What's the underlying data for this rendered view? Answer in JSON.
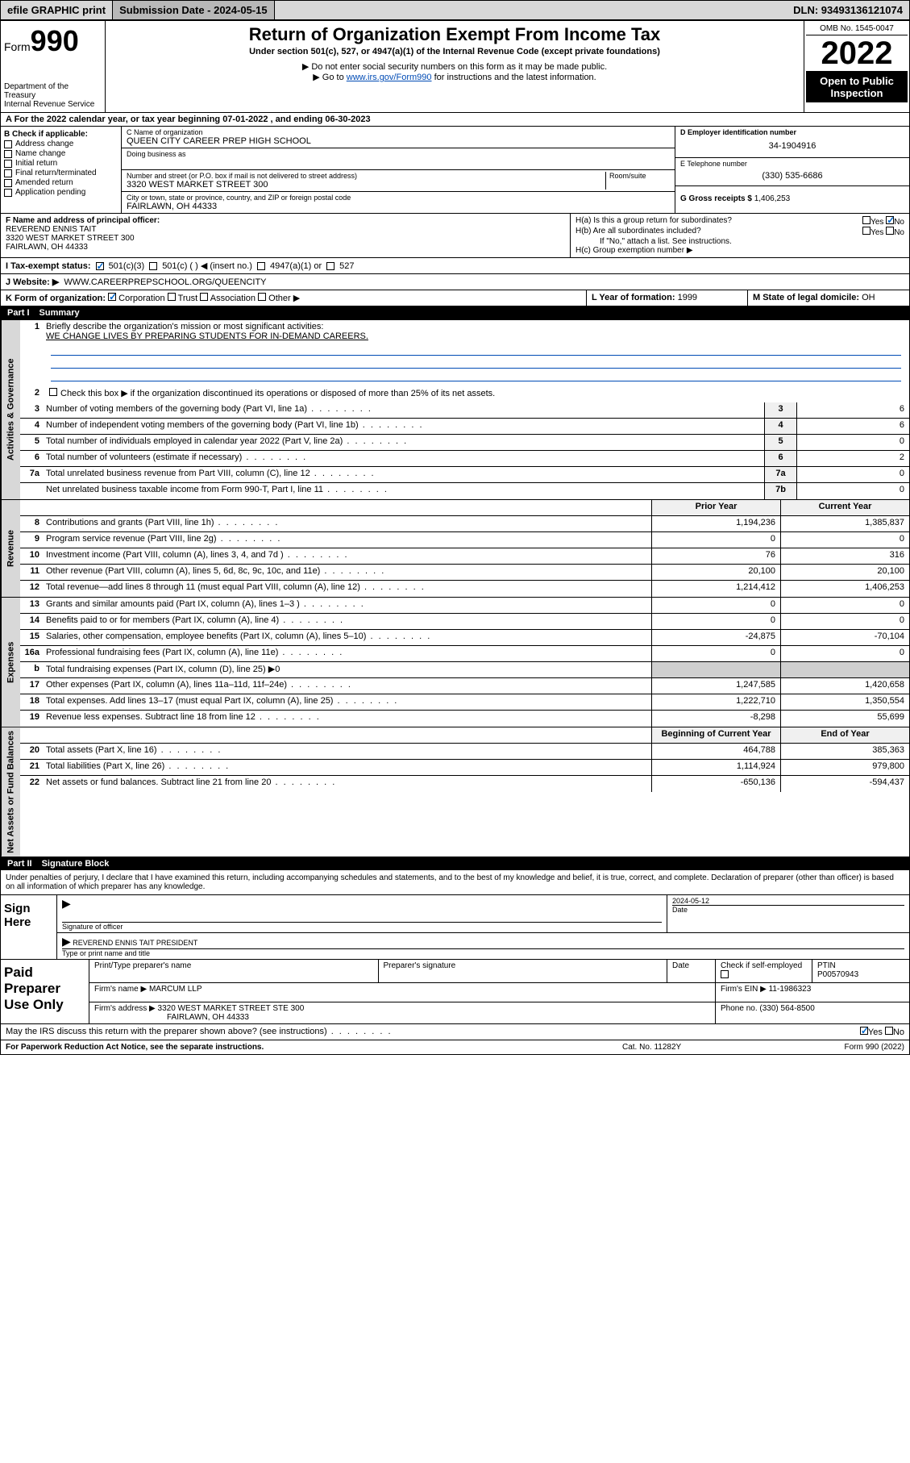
{
  "topbar": {
    "efile": "efile GRAPHIC print",
    "submission_label": "Submission Date - 2024-05-15",
    "dln": "DLN: 93493136121074"
  },
  "header": {
    "form_label": "Form",
    "form_number": "990",
    "dept": "Department of the Treasury",
    "irs": "Internal Revenue Service",
    "title": "Return of Organization Exempt From Income Tax",
    "subtitle": "Under section 501(c), 527, or 4947(a)(1) of the Internal Revenue Code (except private foundations)",
    "note1": "▶ Do not enter social security numbers on this form as it may be made public.",
    "note2_pre": "▶ Go to ",
    "note2_link": "www.irs.gov/Form990",
    "note2_post": " for instructions and the latest information.",
    "omb": "OMB No. 1545-0047",
    "year": "2022",
    "open": "Open to Public Inspection"
  },
  "section_a": "A For the 2022 calendar year, or tax year beginning 07-01-2022   , and ending 06-30-2023",
  "section_b": {
    "title": "B Check if applicable:",
    "items": [
      "Address change",
      "Name change",
      "Initial return",
      "Final return/terminated",
      "Amended return",
      "Application pending"
    ]
  },
  "section_c": {
    "name_label": "C Name of organization",
    "name": "QUEEN CITY CAREER PREP HIGH SCHOOL",
    "dba_label": "Doing business as",
    "addr_label": "Number and street (or P.O. box if mail is not delivered to street address)",
    "room_label": "Room/suite",
    "addr": "3320 WEST MARKET STREET 300",
    "city_label": "City or town, state or province, country, and ZIP or foreign postal code",
    "city": "FAIRLAWN, OH  44333"
  },
  "section_d": {
    "label": "D Employer identification number",
    "val": "34-1904916"
  },
  "section_e": {
    "label": "E Telephone number",
    "val": "(330) 535-6686"
  },
  "section_g": {
    "label": "G Gross receipts $",
    "val": "1,406,253"
  },
  "section_f": {
    "label": "F Name and address of principal officer:",
    "name": "REVEREND ENNIS TAIT",
    "addr1": "3320 WEST MARKET STREET 300",
    "addr2": "FAIRLAWN, OH  44333"
  },
  "section_h": {
    "ha": "H(a)  Is this a group return for subordinates?",
    "hb": "H(b)  Are all subordinates included?",
    "hb_note": "If \"No,\" attach a list. See instructions.",
    "hc": "H(c)  Group exemption number ▶"
  },
  "section_i": {
    "label": "I   Tax-exempt status:",
    "opts": [
      "501(c)(3)",
      "501(c) (  ) ◀ (insert no.)",
      "4947(a)(1) or",
      "527"
    ]
  },
  "section_j": {
    "label": "J   Website: ▶",
    "val": "WWW.CAREERPREPSCHOOL.ORG/QUEENCITY"
  },
  "section_k": {
    "label": "K Form of organization:",
    "opts": [
      "Corporation",
      "Trust",
      "Association",
      "Other ▶"
    ]
  },
  "section_l": {
    "label": "L Year of formation:",
    "val": "1999"
  },
  "section_m": {
    "label": "M State of legal domicile:",
    "val": "OH"
  },
  "part1": {
    "label": "Part I",
    "title": "Summary"
  },
  "gov": {
    "q1": "Briefly describe the organization's mission or most significant activities:",
    "mission": "WE CHANGE LIVES BY PREPARING STUDENTS FOR IN-DEMAND CAREERS.",
    "q2": "Check this box ▶        if the organization discontinued its operations or disposed of more than 25% of its net assets.",
    "lines": [
      {
        "n": "3",
        "d": "Number of voting members of the governing body (Part VI, line 1a)",
        "bn": "3",
        "v": "6"
      },
      {
        "n": "4",
        "d": "Number of independent voting members of the governing body (Part VI, line 1b)",
        "bn": "4",
        "v": "6"
      },
      {
        "n": "5",
        "d": "Total number of individuals employed in calendar year 2022 (Part V, line 2a)",
        "bn": "5",
        "v": "0"
      },
      {
        "n": "6",
        "d": "Total number of volunteers (estimate if necessary)",
        "bn": "6",
        "v": "2"
      },
      {
        "n": "7a",
        "d": "Total unrelated business revenue from Part VIII, column (C), line 12",
        "bn": "7a",
        "v": "0"
      },
      {
        "n": "",
        "d": "Net unrelated business taxable income from Form 990-T, Part I, line 11",
        "bn": "7b",
        "v": "0"
      }
    ]
  },
  "cols": {
    "prior": "Prior Year",
    "curr": "Current Year",
    "boy": "Beginning of Current Year",
    "eoy": "End of Year"
  },
  "revenue": [
    {
      "n": "8",
      "d": "Contributions and grants (Part VIII, line 1h)",
      "p": "1,194,236",
      "c": "1,385,837"
    },
    {
      "n": "9",
      "d": "Program service revenue (Part VIII, line 2g)",
      "p": "0",
      "c": "0"
    },
    {
      "n": "10",
      "d": "Investment income (Part VIII, column (A), lines 3, 4, and 7d )",
      "p": "76",
      "c": "316"
    },
    {
      "n": "11",
      "d": "Other revenue (Part VIII, column (A), lines 5, 6d, 8c, 9c, 10c, and 11e)",
      "p": "20,100",
      "c": "20,100"
    },
    {
      "n": "12",
      "d": "Total revenue—add lines 8 through 11 (must equal Part VIII, column (A), line 12)",
      "p": "1,214,412",
      "c": "1,406,253"
    }
  ],
  "expenses": [
    {
      "n": "13",
      "d": "Grants and similar amounts paid (Part IX, column (A), lines 1–3 )",
      "p": "0",
      "c": "0"
    },
    {
      "n": "14",
      "d": "Benefits paid to or for members (Part IX, column (A), line 4)",
      "p": "0",
      "c": "0"
    },
    {
      "n": "15",
      "d": "Salaries, other compensation, employee benefits (Part IX, column (A), lines 5–10)",
      "p": "-24,875",
      "c": "-70,104"
    },
    {
      "n": "16a",
      "d": "Professional fundraising fees (Part IX, column (A), line 11e)",
      "p": "0",
      "c": "0"
    },
    {
      "n": "b",
      "d": "Total fundraising expenses (Part IX, column (D), line 25) ▶0",
      "shade": true
    },
    {
      "n": "17",
      "d": "Other expenses (Part IX, column (A), lines 11a–11d, 11f–24e)",
      "p": "1,247,585",
      "c": "1,420,658"
    },
    {
      "n": "18",
      "d": "Total expenses. Add lines 13–17 (must equal Part IX, column (A), line 25)",
      "p": "1,222,710",
      "c": "1,350,554"
    },
    {
      "n": "19",
      "d": "Revenue less expenses. Subtract line 18 from line 12",
      "p": "-8,298",
      "c": "55,699"
    }
  ],
  "netassets": [
    {
      "n": "20",
      "d": "Total assets (Part X, line 16)",
      "p": "464,788",
      "c": "385,363"
    },
    {
      "n": "21",
      "d": "Total liabilities (Part X, line 26)",
      "p": "1,114,924",
      "c": "979,800"
    },
    {
      "n": "22",
      "d": "Net assets or fund balances. Subtract line 21 from line 20",
      "p": "-650,136",
      "c": "-594,437"
    }
  ],
  "part2": {
    "label": "Part II",
    "title": "Signature Block"
  },
  "sig": {
    "declaration": "Under penalties of perjury, I declare that I have examined this return, including accompanying schedules and statements, and to the best of my knowledge and belief, it is true, correct, and complete. Declaration of preparer (other than officer) is based on all information of which preparer has any knowledge.",
    "sign_here": "Sign Here",
    "sig_officer": "Signature of officer",
    "date": "Date",
    "date_val": "2024-05-12",
    "name_title": "REVEREND ENNIS TAIT PRESIDENT",
    "name_title_label": "Type or print name and title"
  },
  "paid": {
    "label": "Paid Preparer Use Only",
    "cols": [
      "Print/Type preparer's name",
      "Preparer's signature",
      "Date"
    ],
    "check": "Check         if self-employed",
    "ptin_label": "PTIN",
    "ptin": "P00570943",
    "firm_name_label": "Firm's name    ▶",
    "firm_name": "MARCUM LLP",
    "firm_ein_label": "Firm's EIN ▶",
    "firm_ein": "11-1986323",
    "firm_addr_label": "Firm's address ▶",
    "firm_addr1": "3320 WEST MARKET STREET STE 300",
    "firm_addr2": "FAIRLAWN, OH  44333",
    "phone_label": "Phone no.",
    "phone": "(330) 564-8500"
  },
  "discuss": "May the IRS discuss this return with the preparer shown above? (see instructions)",
  "footer": {
    "left": "For Paperwork Reduction Act Notice, see the separate instructions.",
    "mid": "Cat. No. 11282Y",
    "right": "Form 990 (2022)"
  },
  "vlabels": {
    "gov": "Activities & Governance",
    "rev": "Revenue",
    "exp": "Expenses",
    "net": "Net Assets or Fund Balances"
  }
}
